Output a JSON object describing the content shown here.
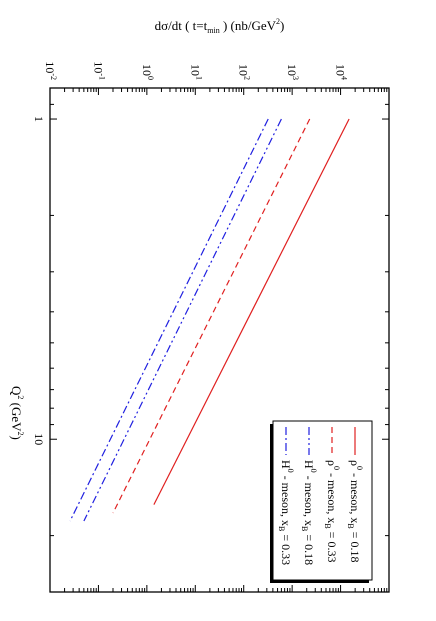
{
  "chart_data": {
    "type": "line",
    "orientation": "rotated-90-clockwise",
    "xlabel": {
      "main": "Q",
      "sup": "2",
      "unit": " (GeV",
      "unit_sup": "2",
      "close": ")"
    },
    "ylabel": {
      "pre": "dσ/dt ( t=t",
      "sub": "min",
      "post": " ) (nb/GeV",
      "sup": "2",
      "close": ")"
    },
    "x_scale": "log",
    "y_scale": "log",
    "xlim": [
      0.8,
      30
    ],
    "ylim": [
      0.01,
      100000
    ],
    "x_ticks": [
      {
        "value": 1,
        "label": "1"
      },
      {
        "value": 10,
        "label": "10"
      }
    ],
    "y_ticks": [
      {
        "value": 10000,
        "base": "10",
        "exp": "4"
      },
      {
        "value": 1000,
        "base": "10",
        "exp": "3"
      },
      {
        "value": 100,
        "base": "10",
        "exp": "2"
      },
      {
        "value": 10,
        "base": "10",
        "exp": "1"
      },
      {
        "value": 1,
        "base": "10",
        "exp": "0"
      },
      {
        "value": 0.1,
        "base": "10",
        "exp": "-1"
      },
      {
        "value": 0.01,
        "base": "10",
        "exp": "-2"
      }
    ],
    "legend_position": "top-right",
    "series": [
      {
        "particle": "ρ",
        "sup": "0",
        "text": " - meson, x",
        "sub": "B",
        "value_text": " = 0.18",
        "color": "#e02020",
        "dash": "solid",
        "x": [
          1,
          16
        ],
        "y": [
          15000,
          1.4
        ]
      },
      {
        "particle": "ρ",
        "sup": "0",
        "text": " - meson, x",
        "sub": "B",
        "value_text": " = 0.33",
        "color": "#e02020",
        "dash": "dashed",
        "x": [
          1,
          17
        ],
        "y": [
          2300,
          0.2
        ]
      },
      {
        "particle": "H",
        "sup": "0",
        "text": " - meson, x",
        "sub": "B",
        "value_text": " = 0.18",
        "color": "#2020e0",
        "dash": "dashdotdot",
        "x": [
          1,
          18
        ],
        "y": [
          600,
          0.05
        ]
      },
      {
        "particle": "H",
        "sup": "0",
        "text": " - meson, x",
        "sub": "B",
        "value_text": " = 0.33",
        "color": "#2020e0",
        "dash": "dashdot",
        "x": [
          1,
          18
        ],
        "y": [
          320,
          0.026
        ]
      }
    ]
  }
}
